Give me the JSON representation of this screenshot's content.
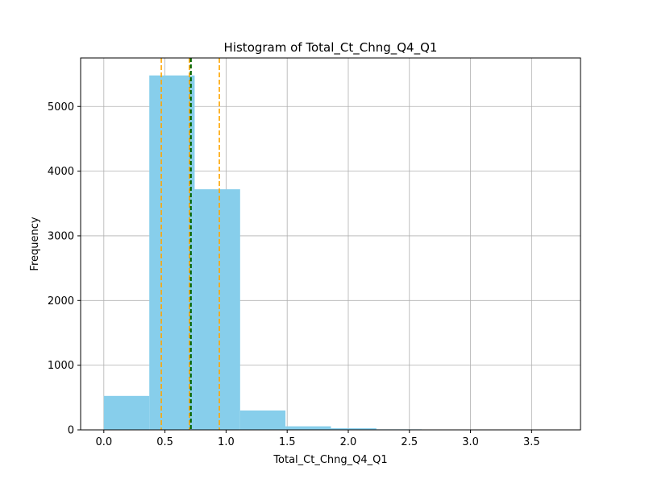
{
  "chart_data": {
    "type": "bar",
    "title": "Histogram of Total_Ct_Chng_Q4_Q1",
    "xlabel": "Total_Ct_Chng_Q4_Q1",
    "ylabel": "Frequency",
    "xlim": [
      -0.19,
      3.9
    ],
    "ylim": [
      0,
      5750
    ],
    "grid": true,
    "bar_color": "#87CEEB",
    "bins": [
      {
        "x0": 0.0,
        "x1": 0.372,
        "count": 525
      },
      {
        "x0": 0.372,
        "x1": 0.743,
        "count": 5480
      },
      {
        "x0": 0.743,
        "x1": 1.115,
        "count": 3720
      },
      {
        "x0": 1.115,
        "x1": 1.486,
        "count": 300
      },
      {
        "x0": 1.486,
        "x1": 1.858,
        "count": 55
      },
      {
        "x0": 1.858,
        "x1": 2.23,
        "count": 25
      },
      {
        "x0": 2.23,
        "x1": 2.601,
        "count": 8
      },
      {
        "x0": 2.601,
        "x1": 2.973,
        "count": 3
      },
      {
        "x0": 2.973,
        "x1": 3.344,
        "count": 2
      },
      {
        "x0": 3.344,
        "x1": 3.716,
        "count": 1
      }
    ],
    "x_ticks": [
      "0.0",
      "0.5",
      "1.0",
      "1.5",
      "2.0",
      "2.5",
      "3.0",
      "3.5"
    ],
    "x_tick_values": [
      0.0,
      0.5,
      1.0,
      1.5,
      2.0,
      2.5,
      3.0,
      3.5
    ],
    "y_ticks": [
      "0",
      "1000",
      "2000",
      "3000",
      "4000",
      "5000"
    ],
    "y_tick_values": [
      0,
      1000,
      2000,
      3000,
      4000,
      5000
    ],
    "reference_lines": [
      {
        "x": 0.47,
        "color": "#FFA500",
        "style": "dashed"
      },
      {
        "x": 0.945,
        "color": "#FFA500",
        "style": "dashed"
      },
      {
        "x": 0.7,
        "color": "#FFA500",
        "style": "dashed"
      },
      {
        "x": 0.712,
        "color": "#006400",
        "style": "dashed"
      }
    ]
  }
}
